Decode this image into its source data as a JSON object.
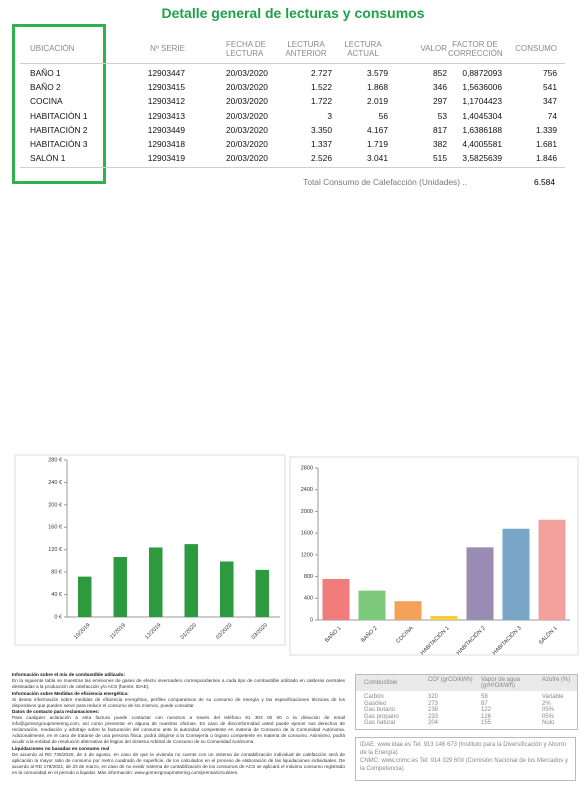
{
  "header": {
    "title": "Detalle general de lecturas y consumos"
  },
  "table": {
    "columns": [
      "UBICACIÓN",
      "Nº SERIE",
      "FECHA DE LECTURA",
      "LECTURA ANTERIOR",
      "LECTURA ACTUAL",
      "VALOR",
      "FACTOR DE CORRECCIÓN",
      "CONSUMO"
    ],
    "rows": [
      [
        "BAÑO 1",
        "12903447",
        "20/03/2020",
        "2.727",
        "3.579",
        "852",
        "0,8872093",
        "756"
      ],
      [
        "BAÑO 2",
        "12903415",
        "20/03/2020",
        "1.522",
        "1.868",
        "346",
        "1,5636006",
        "541"
      ],
      [
        "COCINA",
        "12903412",
        "20/03/2020",
        "1.722",
        "2.019",
        "297",
        "1,1704423",
        "347"
      ],
      [
        "HABITACIÓN 1",
        "12903413",
        "20/03/2020",
        "3",
        "56",
        "53",
        "1,4045304",
        "74"
      ],
      [
        "HABITACIÓN 2",
        "12903449",
        "20/03/2020",
        "3.350",
        "4.167",
        "817",
        "1,6386188",
        "1.339"
      ],
      [
        "HABITACIÓN 3",
        "12903418",
        "20/03/2020",
        "1.337",
        "1.719",
        "382",
        "4,4005581",
        "1.681"
      ],
      [
        "SALÓN 1",
        "12903419",
        "20/03/2020",
        "2.526",
        "3.041",
        "515",
        "3,5825639",
        "1.846"
      ]
    ],
    "total_label": "Total Consumo de Calefacción (Unidades) ..",
    "total_value": "6.584"
  },
  "chart_data": [
    {
      "type": "bar",
      "categories": [
        "10/2019",
        "11/2019",
        "12/2019",
        "01/2020",
        "02/2020",
        "03/2020"
      ],
      "values": [
        72,
        107,
        124,
        130,
        99,
        84
      ],
      "color": "#2e9a40",
      "ylim": [
        0,
        280
      ],
      "yticks": [
        {
          "value": 0,
          "label": "0 €"
        },
        {
          "value": 40,
          "label": "40 €"
        },
        {
          "value": 80,
          "label": "80 €"
        },
        {
          "value": 120,
          "label": "120 €"
        },
        {
          "value": 160,
          "label": "160 €"
        },
        {
          "value": 200,
          "label": "200 €"
        },
        {
          "value": 240,
          "label": "240 €"
        },
        {
          "value": 280,
          "label": "280 €"
        }
      ]
    },
    {
      "type": "bar",
      "categories": [
        "BAÑO 1",
        "BAÑO 2",
        "COCINA",
        "HABITACIÓN 1",
        "HABITACIÓN 2",
        "HABITACIÓN 3",
        "SALÓN 1"
      ],
      "values": [
        756,
        541,
        347,
        74,
        1339,
        1681,
        1846
      ],
      "colors": [
        "#f07c7c",
        "#7cc97c",
        "#f4a25a",
        "#f6cd3a",
        "#9a8bb3",
        "#79a6c6",
        "#f3a19c"
      ],
      "ylim": [
        0,
        2800
      ],
      "yticks": [
        0,
        400,
        800,
        1200,
        1600,
        2000,
        2400,
        2800
      ]
    }
  ],
  "info": [
    {
      "heading": "Información sobre el mix de combustible utilizado:",
      "text": "En la siguiente tabla se muestran las emisiones de gases de efecto invernadero correspondientes a cada tipo de combustible utilizado en calderas centrales destinadas a la producción de calefacción y/o ACS (fuente: IDAE)."
    },
    {
      "heading": "Información sobre Medidas de eficiencia energética:",
      "text": "Si desea información sobre medidas de eficiencia energética, perfiles comparativos de su consumo de energía y las especificaciones técnicas de los dispositivos que pueden servir para reducir el consumo de los mismos, puede consultar."
    },
    {
      "heading": "Datos de contacto para reclamaciones:",
      "text": "Para cualquier aclaración a esta factura puede contactar con nosotros a través del teléfono 91 303 00 00 o la dirección de email info@gomezgroupmetering.com, así como presentar en alguna de nuestras oficinas. En caso de disconformidad usted puede ejercer sus derechos de reclamación, mediación y arbitraje sobre la facturación del consumo ante la autoridad competente en materia de Consumo de la Comunidad Autónoma. Adicionalmente, en el caso de tratarse de una persona física, podrá dirigirse a la Consejería u órgano competente en materia de consumo. Asimismo, podrá acudir a la entidad de resolución alternativa de litigios del Sistema Arbitral de Consumo de su Comunidad Autónoma."
    },
    {
      "heading": "Liquidaciones no basadas en consumo real",
      "text": "De acuerdo al RD 736/2020, de 4 de agosto, en caso de que la vivienda no cuente con un sistema de contabilización individual de calefacción será de aplicación la mayor ratio de consumo por metro cuadrado de superficie, de los calculados en el proceso de elaboración de las liquidaciones individuales. De acuerdo al RD 178/2021, de 23 de marzo, en caso de no existir sistema de contabilización de los consumos de ACS se aplicará el máximo consumo registrado en la comunidad en el periodo a liquidar. Más información: www.gomezgroupmetering.com/prensa/circulares."
    }
  ],
  "fuel_table": {
    "columns": [
      "Combustible",
      "CO² (grCO/kWh)",
      "Vapor de agua (grH²O/kWh)",
      "Azufre (%)"
    ],
    "rows": [
      [
        "Carbón",
        "320",
        "58",
        "Variable"
      ],
      [
        "Gasóleo",
        "273",
        "87",
        "2%"
      ],
      [
        "Gas butano",
        "238",
        "122",
        "05%"
      ],
      [
        "Gas propano",
        "233",
        "126",
        "05%"
      ],
      [
        "Gas natural",
        "204",
        "155",
        "Nulo"
      ]
    ]
  },
  "contacts": [
    "IDAE: www.idae.es Tel: 913 146 673 (Instituto para la Diversificación y Ahorro de la Energía)",
    "CNMC: www.cnmc.es Tel: 914 329 600 (Comisión Nacional de los Mercados y la Competencia)"
  ]
}
